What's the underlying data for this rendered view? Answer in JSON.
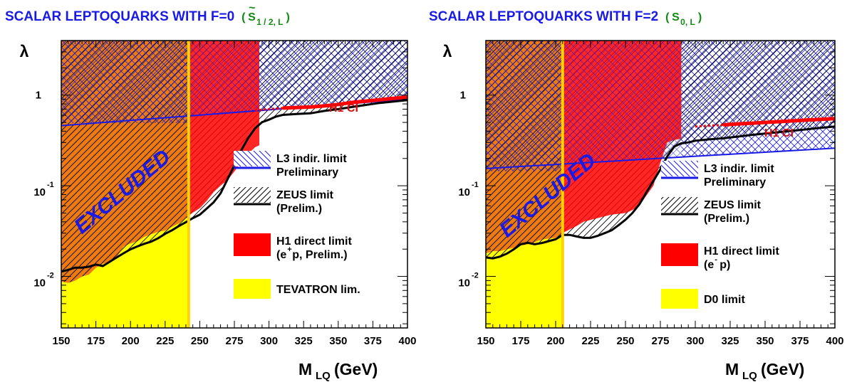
{
  "colors": {
    "title": "#1a1ae6",
    "title_sub": "#128a12",
    "tevatron": "#ffff00",
    "orange": "#ee7a14",
    "h1": "#ff0000",
    "h1_dark": "#d01010",
    "l3": "#1a1ae6",
    "zeus": "#000000",
    "excluded_text": "#1a1ae6",
    "axis_frame": "#000000",
    "vline": "#ffd200"
  },
  "panels": [
    {
      "id": "f0",
      "title": "SCALAR LEPTOQUARKS WITH F=0",
      "sub_label": {
        "paren_open": "(",
        "tilde": "~",
        "letter": "S",
        "subscript": "1 / 2, L",
        "paren_close": ")"
      },
      "y_symbol": "λ",
      "excluded_label": "EXCLUDED",
      "h1ci_label": "H1 CI",
      "x_axis": {
        "label_main": "M",
        "label_sub": "LQ",
        "label_unit": " (GeV)"
      },
      "y_ticks": [
        {
          "value": 1,
          "main": "1",
          "sup": ""
        },
        {
          "value": 0.1,
          "main": "10",
          "sup": "-1"
        },
        {
          "value": 0.01,
          "main": "10",
          "sup": "-2"
        }
      ],
      "legend": [
        {
          "key": "l3",
          "lines": [
            "L3 indir. limit",
            "Preliminary"
          ]
        },
        {
          "key": "zeus",
          "lines": [
            "ZEUS limit",
            "(Prelim.)"
          ]
        },
        {
          "key": "h1",
          "lines": [
            "H1 direct limit",
            "(e",
            "+",
            " p, Prelim.)"
          ]
        },
        {
          "key": "tevatron",
          "lines": [
            "TEVATRON lim."
          ]
        }
      ]
    },
    {
      "id": "f2",
      "title": "SCALAR LEPTOQUARKS WITH F=2",
      "sub_label": {
        "paren_open": "(",
        "tilde": "",
        "letter": "S",
        "subscript": "0, L",
        "paren_close": ")"
      },
      "y_symbol": "λ",
      "excluded_label": "EXCLUDED",
      "h1ci_label": "H1 CI",
      "x_axis": {
        "label_main": "M",
        "label_sub": "LQ",
        "label_unit": " (GeV)"
      },
      "y_ticks": [
        {
          "value": 1,
          "main": "1",
          "sup": ""
        },
        {
          "value": 0.1,
          "main": "10",
          "sup": "-1"
        },
        {
          "value": 0.01,
          "main": "10",
          "sup": "-2"
        }
      ],
      "legend": [
        {
          "key": "l3",
          "lines": [
            "L3 indir. limit",
            "Preliminary"
          ]
        },
        {
          "key": "zeus",
          "lines": [
            "ZEUS limit",
            "(Prelim.)"
          ]
        },
        {
          "key": "h1",
          "lines": [
            "H1 direct limit",
            "(e",
            "-",
            " p)"
          ]
        },
        {
          "key": "tevatron",
          "lines": [
            "D0 limit"
          ]
        }
      ]
    }
  ],
  "chart_data": [
    {
      "type": "area",
      "title": "SCALAR LEPTOQUARKS WITH F=0",
      "xlabel": "M LQ (GeV)",
      "ylabel": "λ",
      "x_range": [
        150,
        400
      ],
      "y_range": [
        0.0027,
        4.0
      ],
      "y_scale": "log",
      "x_ticks": [
        150,
        175,
        200,
        225,
        250,
        275,
        300,
        325,
        350,
        375,
        400
      ],
      "y_ticks": [
        0.01,
        0.1,
        1
      ],
      "legend_position": "right",
      "tevatron_mass_limit": 242,
      "series": [
        {
          "name": "TEVATRON lim.",
          "x": [
            242,
            242
          ],
          "y": [
            0.0027,
            4.0
          ]
        },
        {
          "name": "L3 indir. limit Preliminary",
          "x": [
            150,
            400
          ],
          "y": [
            0.46,
            0.9
          ]
        },
        {
          "name": "ZEUS limit (Prelim.)",
          "x": [
            150,
            155,
            160,
            165,
            170,
            175,
            180,
            185,
            190,
            195,
            200,
            205,
            210,
            215,
            220,
            225,
            230,
            235,
            240,
            245,
            250,
            255,
            260,
            265,
            270,
            275,
            280,
            285,
            290,
            295,
            300,
            305,
            310,
            320,
            330,
            340,
            350,
            360,
            370,
            380,
            390,
            400
          ],
          "y": [
            0.0113,
            0.0118,
            0.0125,
            0.0125,
            0.0128,
            0.0135,
            0.013,
            0.0145,
            0.0162,
            0.018,
            0.0199,
            0.0214,
            0.0229,
            0.0242,
            0.0264,
            0.0295,
            0.0323,
            0.036,
            0.0397,
            0.044,
            0.0479,
            0.056,
            0.0655,
            0.0825,
            0.1176,
            0.1675,
            0.2462,
            0.3356,
            0.432,
            0.503,
            0.536,
            0.58,
            0.605,
            0.62,
            0.63,
            0.67,
            0.7,
            0.74,
            0.78,
            0.82,
            0.85,
            0.88
          ]
        },
        {
          "name": "H1 direct limit (e+ p, Prelim.)",
          "x": [
            150,
            155,
            160,
            165,
            170,
            175,
            180,
            185,
            190,
            195,
            200,
            205,
            210,
            215,
            220,
            225,
            230,
            235,
            240,
            245,
            250,
            255,
            260,
            265,
            270,
            275,
            280,
            285,
            290,
            293
          ],
          "y": [
            0.0088,
            0.0085,
            0.009,
            0.01,
            0.0105,
            0.0125,
            0.0138,
            0.0144,
            0.0163,
            0.0214,
            0.0232,
            0.0245,
            0.0274,
            0.0293,
            0.0311,
            0.0321,
            0.0354,
            0.0385,
            0.0442,
            0.0505,
            0.0565,
            0.0679,
            0.0851,
            0.1002,
            0.1151,
            0.1437,
            0.1816,
            0.2252,
            0.2666,
            0.28
          ]
        },
        {
          "name": "H1 CI",
          "x": [
            290,
            300,
            310,
            320,
            330,
            340,
            350,
            360,
            370,
            380,
            390,
            400
          ],
          "y": [
            0.68,
            0.7,
            0.72,
            0.73,
            0.74,
            0.76,
            0.79,
            0.83,
            0.86,
            0.89,
            0.92,
            0.95
          ]
        }
      ]
    },
    {
      "type": "area",
      "title": "SCALAR LEPTOQUARKS WITH F=2",
      "xlabel": "M LQ (GeV)",
      "ylabel": "λ",
      "x_range": [
        150,
        400
      ],
      "y_range": [
        0.0027,
        4.0
      ],
      "y_scale": "log",
      "x_ticks": [
        150,
        175,
        200,
        225,
        250,
        275,
        300,
        325,
        350,
        375,
        400
      ],
      "y_ticks": [
        0.01,
        0.1,
        1
      ],
      "legend_position": "right",
      "tevatron_mass_limit": 205,
      "series": [
        {
          "name": "D0 limit",
          "x": [
            205,
            205
          ],
          "y": [
            0.0027,
            4.0
          ]
        },
        {
          "name": "L3 indir. limit Preliminary",
          "x": [
            150,
            400
          ],
          "y": [
            0.155,
            0.26
          ]
        },
        {
          "name": "ZEUS limit (Prelim.)",
          "x": [
            150,
            155,
            160,
            165,
            170,
            175,
            180,
            185,
            190,
            195,
            200,
            205,
            210,
            215,
            220,
            225,
            230,
            235,
            240,
            245,
            250,
            255,
            260,
            265,
            270,
            275,
            280,
            285,
            290,
            295,
            300,
            310,
            320,
            330,
            340,
            350,
            360,
            370,
            380,
            390,
            400
          ],
          "y": [
            0.0162,
            0.0158,
            0.0165,
            0.0178,
            0.0199,
            0.0226,
            0.0235,
            0.0226,
            0.0233,
            0.0245,
            0.0257,
            0.0287,
            0.0287,
            0.0276,
            0.0266,
            0.0266,
            0.028,
            0.03,
            0.0322,
            0.0366,
            0.0422,
            0.0501,
            0.0625,
            0.0845,
            0.1129,
            0.152,
            0.2115,
            0.2715,
            0.294,
            0.301,
            0.314,
            0.325,
            0.334,
            0.348,
            0.363,
            0.376,
            0.39,
            0.405,
            0.42,
            0.436,
            0.45
          ]
        },
        {
          "name": "H1 direct limit (e- p)",
          "x": [
            150,
            155,
            160,
            165,
            170,
            175,
            180,
            185,
            190,
            195,
            200,
            205,
            210,
            215,
            220,
            225,
            230,
            235,
            240,
            245,
            250,
            255,
            260,
            265,
            270,
            275,
            280,
            285,
            290
          ],
          "y": [
            0.018,
            0.019,
            0.019,
            0.02,
            0.0207,
            0.022,
            0.0227,
            0.024,
            0.0255,
            0.0262,
            0.0268,
            0.03,
            0.033,
            0.036,
            0.04,
            0.042,
            0.044,
            0.046,
            0.048,
            0.049,
            0.05,
            0.054,
            0.06,
            0.078,
            0.1,
            0.18,
            0.3,
            0.32,
            0.33
          ]
        },
        {
          "name": "H1 CI",
          "x": [
            300,
            310,
            320,
            330,
            340,
            350,
            360,
            370,
            380,
            390,
            400
          ],
          "y": [
            0.45,
            0.46,
            0.47,
            0.48,
            0.49,
            0.5,
            0.51,
            0.52,
            0.53,
            0.54,
            0.55
          ]
        }
      ]
    }
  ]
}
